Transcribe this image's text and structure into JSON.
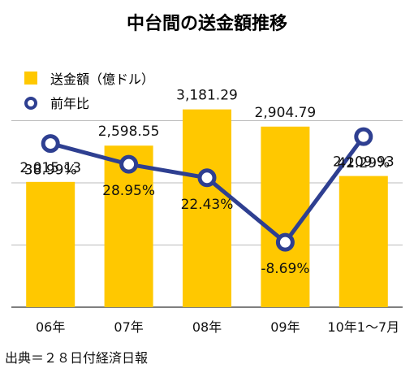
{
  "chart_data": {
    "type": "bar",
    "title": "中台間の送金額推移",
    "categories": [
      "06年",
      "07年",
      "08年",
      "09年",
      "10年1〜7月"
    ],
    "series": [
      {
        "name": "送金額（億ドル）",
        "kind": "bar",
        "values": [
          2015.13,
          2598.55,
          3181.29,
          2904.79,
          2109.93
        ],
        "labels": [
          "2,015.13",
          "2,598.55",
          "3,181.29",
          "2,904.79",
          "2,109.93"
        ],
        "color": "#FFC800"
      },
      {
        "name": "前年比",
        "kind": "line",
        "values": [
          38.99,
          28.95,
          22.43,
          -8.69,
          42.29
        ],
        "labels": [
          "38.99%",
          "28.95%",
          "22.43%",
          "-8.69%",
          "42.29%"
        ],
        "color": "#2E3F91"
      }
    ],
    "ylim": [
      0,
      4000
    ],
    "y2lim": [
      -40,
      80
    ],
    "grid": true,
    "legend": "top-left",
    "source": "出典＝２８日付経済日報"
  }
}
